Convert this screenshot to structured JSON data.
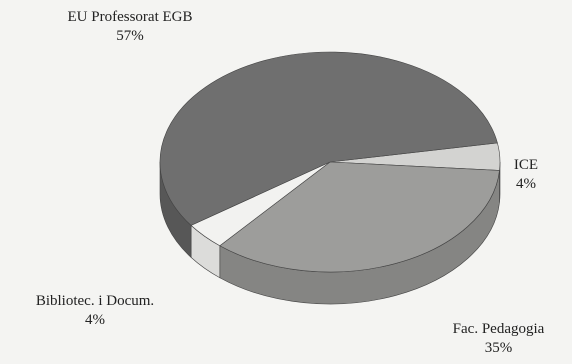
{
  "chart_data": {
    "type": "pie",
    "style": "3d",
    "slices": [
      {
        "label": "EU Professorat EGB",
        "value": 57,
        "value_label": "57%",
        "color": "#6f6f6f",
        "side_color": "#575757"
      },
      {
        "label": "ICE",
        "value": 4,
        "value_label": "4%",
        "color": "#d3d3d1",
        "side_color": "#b2b2b0"
      },
      {
        "label": "Fac. Pedagogia",
        "value": 35,
        "value_label": "35%",
        "color": "#9d9d9b",
        "side_color": "#858583"
      },
      {
        "label": "Bibliotec. i Docum.",
        "value": 4,
        "value_label": "4%",
        "color": "#f2f2f0",
        "side_color": "#dcdcda"
      }
    ]
  }
}
